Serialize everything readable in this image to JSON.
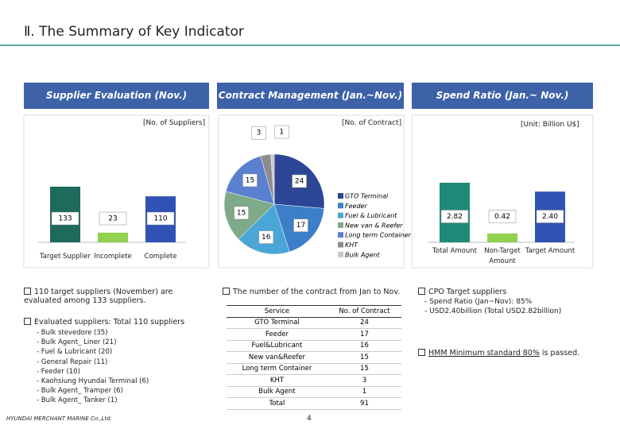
{
  "header": {
    "title": "Ⅱ. The Summary of Key Indicator"
  },
  "chart_data": [
    {
      "type": "bar",
      "title": "Supplier Evaluation (Nov.)",
      "unit": "[No. of Suppliers]",
      "categories": [
        "Target Supplier",
        "Incomplete",
        "Complete"
      ],
      "values": [
        133,
        23,
        110
      ],
      "colors": [
        "#1e6a5c",
        "#92d050",
        "#2f52b4"
      ]
    },
    {
      "type": "pie",
      "title": "Contract Management (Jan.~Nov.)",
      "unit": "[No. of Contract]",
      "categories": [
        "GTO Terminal",
        "Feeder",
        "Fuel & Lubricant",
        "New van & Reefer",
        "Long term Container",
        "KHT",
        "Bulk Agent"
      ],
      "values": [
        24,
        17,
        16,
        15,
        15,
        3,
        1
      ],
      "colors": [
        "#2c4695",
        "#3c7fc8",
        "#4aa6d6",
        "#7faa8a",
        "#5b80d0",
        "#8c8c8c",
        "#c8c8c8"
      ]
    },
    {
      "type": "bar",
      "title": "Spend Ratio (Jan.~ Nov.)",
      "unit": "[Unit: Billion U$]",
      "categories": [
        "Total Amount",
        "Non-Target Amount",
        "Target Amount"
      ],
      "values": [
        2.82,
        0.42,
        2.4
      ],
      "value_labels": [
        "2.82",
        "0.42",
        "2.40"
      ],
      "colors": [
        "#1f8a78",
        "#92d050",
        "#2f52b4"
      ]
    }
  ],
  "notes": {
    "left": {
      "point1": "110 target suppliers (November) are evaluated among 133 suppliers.",
      "point2": "Evaluated suppliers: Total 110 suppliers",
      "items": [
        "- Bulk stevedore (35)",
        "- Bulk Agent_ Liner (21)",
        "- Fuel & Lubricant (20)",
        "- General Repair (11)",
        "- Feeder (10)",
        "- Kaohsiung Hyundai Terminal (6)",
        "- Bulk Agent_ Tramper (6)",
        "- Bulk Agent_ Tanker (1)"
      ]
    },
    "middle": {
      "point": "The number of the contract from Jan to Nov."
    },
    "right": {
      "point": "CPO Target suppliers",
      "items": [
        "- Spend Ratio (Jan~Nov): 85%",
        "- USD2.40billion (Total USD2.82billion)"
      ],
      "standard": "HMM Minimum standard 80%",
      "passed": " is passed."
    }
  },
  "table": {
    "header": [
      "Service",
      "No. of Contract"
    ],
    "rows": [
      [
        "GTO Terminal",
        "24"
      ],
      [
        "Feeder",
        "17"
      ],
      [
        "Fuel&Lubricant",
        "16"
      ],
      [
        "New van&Reefer",
        "15"
      ],
      [
        "Long term Container",
        "15"
      ],
      [
        "KHT",
        "3"
      ],
      [
        "Bulk Agent",
        "1"
      ],
      [
        "Total",
        "91"
      ]
    ]
  },
  "footer": {
    "company": "HYUNDAI MERCHANT MARINE Co.,Ltd.",
    "page": "4"
  }
}
